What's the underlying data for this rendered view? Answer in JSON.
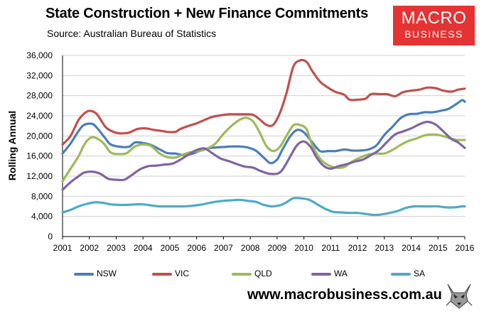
{
  "header": {
    "title": "State Construction + New Finance Commitments",
    "subtitle": "Source: Australian Bureau of Statistics"
  },
  "logo": {
    "line1": "MACRO",
    "line2": "BUSINESS",
    "bg": "#e53232"
  },
  "footer": {
    "url": "www.macrobusiness.com.au"
  },
  "chart_data": {
    "type": "line",
    "title": "State Construction + New Finance Commitments",
    "xlabel": "",
    "ylabel": "Rolling Annual",
    "xlim": [
      2001,
      2016
    ],
    "ylim": [
      0,
      36000
    ],
    "yticks": [
      0,
      4000,
      8000,
      12000,
      16000,
      20000,
      24000,
      28000,
      32000,
      36000
    ],
    "ytick_labels": [
      "0",
      "4,000",
      "8,000",
      "12,000",
      "16,000",
      "20,000",
      "24,000",
      "28,000",
      "32,000",
      "36,000"
    ],
    "xticks": [
      2001,
      2002,
      2003,
      2004,
      2005,
      2006,
      2007,
      2008,
      2009,
      2010,
      2011,
      2012,
      2013,
      2014,
      2015,
      2016
    ],
    "xtick_labels": [
      "2001",
      "2002",
      "2003",
      "2004",
      "2005",
      "2006",
      "2007",
      "2008",
      "2009",
      "2010",
      "2011",
      "2012",
      "2013",
      "2014",
      "2015",
      "2016"
    ],
    "grid": "horizontal",
    "legend": "bottom",
    "series": [
      {
        "name": "NSW",
        "color": "#4a7ebb",
        "points": [
          [
            2001.0,
            16500
          ],
          [
            2001.3,
            18500
          ],
          [
            2001.6,
            21000
          ],
          [
            2001.8,
            22200
          ],
          [
            2002.1,
            22400
          ],
          [
            2002.3,
            21500
          ],
          [
            2002.6,
            19500
          ],
          [
            2002.8,
            18300
          ],
          [
            2003.2,
            17800
          ],
          [
            2003.5,
            17900
          ],
          [
            2003.7,
            18700
          ],
          [
            2004.0,
            18600
          ],
          [
            2004.3,
            18200
          ],
          [
            2004.6,
            17400
          ],
          [
            2004.9,
            16600
          ],
          [
            2005.2,
            16500
          ],
          [
            2005.5,
            16200
          ],
          [
            2005.8,
            16400
          ],
          [
            2006.1,
            17000
          ],
          [
            2006.4,
            17500
          ],
          [
            2006.7,
            17700
          ],
          [
            2007.0,
            17800
          ],
          [
            2007.3,
            17900
          ],
          [
            2007.6,
            17900
          ],
          [
            2007.9,
            17700
          ],
          [
            2008.2,
            17100
          ],
          [
            2008.5,
            15700
          ],
          [
            2008.75,
            14600
          ],
          [
            2009.0,
            15300
          ],
          [
            2009.2,
            17300
          ],
          [
            2009.5,
            20000
          ],
          [
            2009.75,
            21200
          ],
          [
            2010.0,
            20700
          ],
          [
            2010.3,
            18800
          ],
          [
            2010.6,
            17000
          ],
          [
            2010.9,
            17000
          ],
          [
            2011.2,
            17000
          ],
          [
            2011.5,
            17300
          ],
          [
            2011.8,
            17100
          ],
          [
            2012.1,
            17100
          ],
          [
            2012.4,
            17300
          ],
          [
            2012.7,
            18100
          ],
          [
            2013.0,
            20200
          ],
          [
            2013.3,
            21800
          ],
          [
            2013.6,
            23500
          ],
          [
            2013.9,
            24300
          ],
          [
            2014.2,
            24400
          ],
          [
            2014.5,
            24700
          ],
          [
            2014.8,
            24700
          ],
          [
            2015.1,
            25000
          ],
          [
            2015.4,
            25400
          ],
          [
            2015.7,
            26400
          ],
          [
            2015.9,
            27100
          ],
          [
            2016.0,
            26800
          ]
        ]
      },
      {
        "name": "VIC",
        "color": "#c0504d",
        "points": [
          [
            2001.0,
            18300
          ],
          [
            2001.3,
            20000
          ],
          [
            2001.6,
            23200
          ],
          [
            2001.9,
            24800
          ],
          [
            2002.1,
            24900
          ],
          [
            2002.3,
            24200
          ],
          [
            2002.6,
            21800
          ],
          [
            2002.9,
            20800
          ],
          [
            2003.2,
            20500
          ],
          [
            2003.5,
            20700
          ],
          [
            2003.8,
            21400
          ],
          [
            2004.1,
            21500
          ],
          [
            2004.4,
            21200
          ],
          [
            2004.7,
            21000
          ],
          [
            2004.9,
            20800
          ],
          [
            2005.2,
            20800
          ],
          [
            2005.4,
            21400
          ],
          [
            2005.7,
            22000
          ],
          [
            2006.0,
            22500
          ],
          [
            2006.3,
            23200
          ],
          [
            2006.6,
            23800
          ],
          [
            2006.9,
            24100
          ],
          [
            2007.2,
            24300
          ],
          [
            2007.5,
            24300
          ],
          [
            2007.8,
            24300
          ],
          [
            2008.1,
            24200
          ],
          [
            2008.35,
            23300
          ],
          [
            2008.6,
            22200
          ],
          [
            2008.85,
            22200
          ],
          [
            2009.1,
            24500
          ],
          [
            2009.35,
            28500
          ],
          [
            2009.6,
            33700
          ],
          [
            2009.85,
            35000
          ],
          [
            2010.1,
            34700
          ],
          [
            2010.3,
            33000
          ],
          [
            2010.6,
            30800
          ],
          [
            2010.9,
            29600
          ],
          [
            2011.2,
            28700
          ],
          [
            2011.5,
            28200
          ],
          [
            2011.7,
            27200
          ],
          [
            2012.0,
            27200
          ],
          [
            2012.3,
            27400
          ],
          [
            2012.5,
            28300
          ],
          [
            2012.8,
            28300
          ],
          [
            2013.1,
            28300
          ],
          [
            2013.4,
            27900
          ],
          [
            2013.7,
            28700
          ],
          [
            2014.0,
            29000
          ],
          [
            2014.3,
            29200
          ],
          [
            2014.6,
            29600
          ],
          [
            2014.9,
            29500
          ],
          [
            2015.2,
            29000
          ],
          [
            2015.5,
            28800
          ],
          [
            2015.75,
            29200
          ],
          [
            2016.0,
            29400
          ]
        ]
      },
      {
        "name": "QLD",
        "color": "#9bbb59",
        "points": [
          [
            2001.0,
            11000
          ],
          [
            2001.3,
            13500
          ],
          [
            2001.6,
            16000
          ],
          [
            2001.8,
            18200
          ],
          [
            2002.0,
            19500
          ],
          [
            2002.2,
            19700
          ],
          [
            2002.5,
            18700
          ],
          [
            2002.8,
            16700
          ],
          [
            2003.1,
            16400
          ],
          [
            2003.4,
            16600
          ],
          [
            2003.7,
            17900
          ],
          [
            2004.0,
            18300
          ],
          [
            2004.3,
            18000
          ],
          [
            2004.6,
            16600
          ],
          [
            2004.9,
            15800
          ],
          [
            2005.2,
            15700
          ],
          [
            2005.5,
            16300
          ],
          [
            2005.8,
            16800
          ],
          [
            2006.1,
            17000
          ],
          [
            2006.4,
            17500
          ],
          [
            2006.7,
            18500
          ],
          [
            2007.0,
            20400
          ],
          [
            2007.3,
            22000
          ],
          [
            2007.6,
            23200
          ],
          [
            2007.85,
            23600
          ],
          [
            2008.1,
            22900
          ],
          [
            2008.35,
            20700
          ],
          [
            2008.6,
            18000
          ],
          [
            2008.85,
            17000
          ],
          [
            2009.1,
            17800
          ],
          [
            2009.35,
            20000
          ],
          [
            2009.6,
            22100
          ],
          [
            2009.85,
            22200
          ],
          [
            2010.1,
            21300
          ],
          [
            2010.3,
            18300
          ],
          [
            2010.6,
            15500
          ],
          [
            2010.9,
            14200
          ],
          [
            2011.2,
            13700
          ],
          [
            2011.5,
            13800
          ],
          [
            2011.8,
            14900
          ],
          [
            2012.1,
            15700
          ],
          [
            2012.4,
            16300
          ],
          [
            2012.7,
            16500
          ],
          [
            2013.0,
            16500
          ],
          [
            2013.3,
            17200
          ],
          [
            2013.6,
            18200
          ],
          [
            2013.9,
            19000
          ],
          [
            2014.2,
            19500
          ],
          [
            2014.5,
            20100
          ],
          [
            2014.8,
            20300
          ],
          [
            2015.1,
            20100
          ],
          [
            2015.4,
            19600
          ],
          [
            2015.7,
            19200
          ],
          [
            2016.0,
            19200
          ]
        ]
      },
      {
        "name": "WA",
        "color": "#8064a2",
        "points": [
          [
            2001.0,
            9300
          ],
          [
            2001.3,
            10800
          ],
          [
            2001.6,
            12000
          ],
          [
            2001.8,
            12700
          ],
          [
            2002.1,
            12900
          ],
          [
            2002.4,
            12500
          ],
          [
            2002.7,
            11500
          ],
          [
            2003.0,
            11300
          ],
          [
            2003.3,
            11300
          ],
          [
            2003.6,
            12300
          ],
          [
            2003.9,
            13400
          ],
          [
            2004.2,
            14000
          ],
          [
            2004.5,
            14100
          ],
          [
            2004.8,
            14300
          ],
          [
            2005.1,
            14500
          ],
          [
            2005.4,
            15300
          ],
          [
            2005.7,
            16300
          ],
          [
            2006.0,
            17200
          ],
          [
            2006.3,
            17500
          ],
          [
            2006.6,
            16500
          ],
          [
            2006.9,
            15500
          ],
          [
            2007.2,
            15000
          ],
          [
            2007.5,
            14400
          ],
          [
            2007.8,
            13900
          ],
          [
            2008.1,
            13700
          ],
          [
            2008.4,
            13000
          ],
          [
            2008.7,
            12500
          ],
          [
            2009.0,
            12500
          ],
          [
            2009.2,
            13300
          ],
          [
            2009.5,
            16000
          ],
          [
            2009.75,
            18200
          ],
          [
            2010.0,
            18900
          ],
          [
            2010.25,
            17800
          ],
          [
            2010.5,
            15500
          ],
          [
            2010.75,
            14000
          ],
          [
            2011.0,
            13500
          ],
          [
            2011.3,
            14000
          ],
          [
            2011.6,
            14400
          ],
          [
            2011.9,
            14900
          ],
          [
            2012.2,
            15300
          ],
          [
            2012.5,
            16200
          ],
          [
            2012.8,
            17200
          ],
          [
            2013.1,
            18800
          ],
          [
            2013.4,
            20300
          ],
          [
            2013.7,
            20900
          ],
          [
            2014.0,
            21500
          ],
          [
            2014.3,
            22300
          ],
          [
            2014.6,
            22800
          ],
          [
            2014.9,
            22300
          ],
          [
            2015.2,
            20900
          ],
          [
            2015.5,
            19400
          ],
          [
            2015.75,
            18700
          ],
          [
            2016.0,
            17600
          ]
        ]
      },
      {
        "name": "SA",
        "color": "#4bacc6",
        "points": [
          [
            2001.0,
            4800
          ],
          [
            2001.3,
            5300
          ],
          [
            2001.6,
            6000
          ],
          [
            2001.9,
            6500
          ],
          [
            2002.2,
            6800
          ],
          [
            2002.5,
            6700
          ],
          [
            2002.8,
            6400
          ],
          [
            2003.1,
            6300
          ],
          [
            2003.4,
            6300
          ],
          [
            2003.7,
            6400
          ],
          [
            2004.0,
            6400
          ],
          [
            2004.3,
            6200
          ],
          [
            2004.6,
            6000
          ],
          [
            2004.9,
            6000
          ],
          [
            2005.2,
            6000
          ],
          [
            2005.5,
            6000
          ],
          [
            2005.8,
            6100
          ],
          [
            2006.1,
            6300
          ],
          [
            2006.4,
            6600
          ],
          [
            2006.7,
            6900
          ],
          [
            2007.0,
            7100
          ],
          [
            2007.3,
            7200
          ],
          [
            2007.6,
            7300
          ],
          [
            2007.9,
            7100
          ],
          [
            2008.2,
            6900
          ],
          [
            2008.5,
            6300
          ],
          [
            2008.8,
            6000
          ],
          [
            2009.1,
            6200
          ],
          [
            2009.35,
            6800
          ],
          [
            2009.6,
            7600
          ],
          [
            2009.9,
            7600
          ],
          [
            2010.2,
            7300
          ],
          [
            2010.5,
            6400
          ],
          [
            2010.8,
            5500
          ],
          [
            2011.1,
            4900
          ],
          [
            2011.4,
            4800
          ],
          [
            2011.7,
            4700
          ],
          [
            2012.0,
            4700
          ],
          [
            2012.3,
            4500
          ],
          [
            2012.6,
            4300
          ],
          [
            2012.9,
            4400
          ],
          [
            2013.2,
            4700
          ],
          [
            2013.5,
            5100
          ],
          [
            2013.8,
            5700
          ],
          [
            2014.1,
            6000
          ],
          [
            2014.4,
            6000
          ],
          [
            2014.7,
            6000
          ],
          [
            2015.0,
            6000
          ],
          [
            2015.3,
            5800
          ],
          [
            2015.6,
            5800
          ],
          [
            2015.9,
            6000
          ],
          [
            2016.0,
            6000
          ]
        ]
      }
    ]
  }
}
